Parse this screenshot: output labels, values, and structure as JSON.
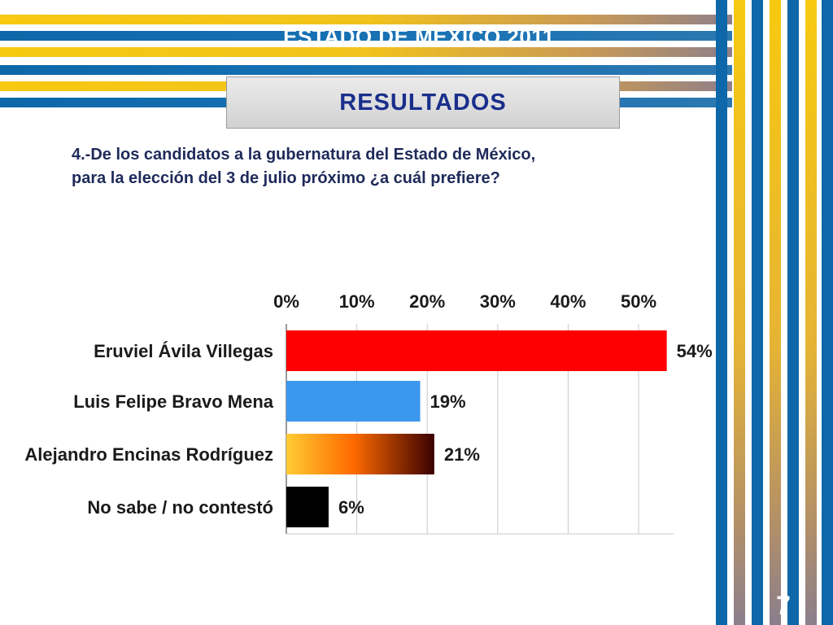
{
  "slide": {
    "title": "ESTADO DE MÉXICO 2011",
    "section_label": "RESULTADOS",
    "question_line1": "4.-De los candidatos a la gubernatura del Estado de México,",
    "question_line2": "para la elección del 3 de julio próximo  ¿a cuál prefiere?",
    "page_number": "7"
  },
  "colors": {
    "stripe_gold": "#f7c910",
    "stripe_blue": "#0d67a8",
    "title_blue": "#1a2f8c",
    "question_text": "#1f2a5a"
  },
  "chart_data": {
    "type": "bar",
    "orientation": "horizontal",
    "categories": [
      "Eruviel Ávila Villegas",
      "Luis Felipe Bravo Mena",
      "Alejandro Encinas Rodríguez",
      "No sabe / no contestó"
    ],
    "values": [
      54,
      19,
      21,
      6
    ],
    "value_labels": [
      "54%",
      "19%",
      "21%",
      "6%"
    ],
    "bar_colors": [
      "#ff0000",
      "#3c97ee",
      "gradient-orange-to-dark-red",
      "#000000"
    ],
    "xlim": [
      0,
      55
    ],
    "x_ticks": [
      0,
      10,
      20,
      30,
      40,
      50
    ],
    "x_tick_labels": [
      "0%",
      "10%",
      "20%",
      "30%",
      "40%",
      "50%"
    ],
    "axis_position": "top",
    "grid": true
  }
}
